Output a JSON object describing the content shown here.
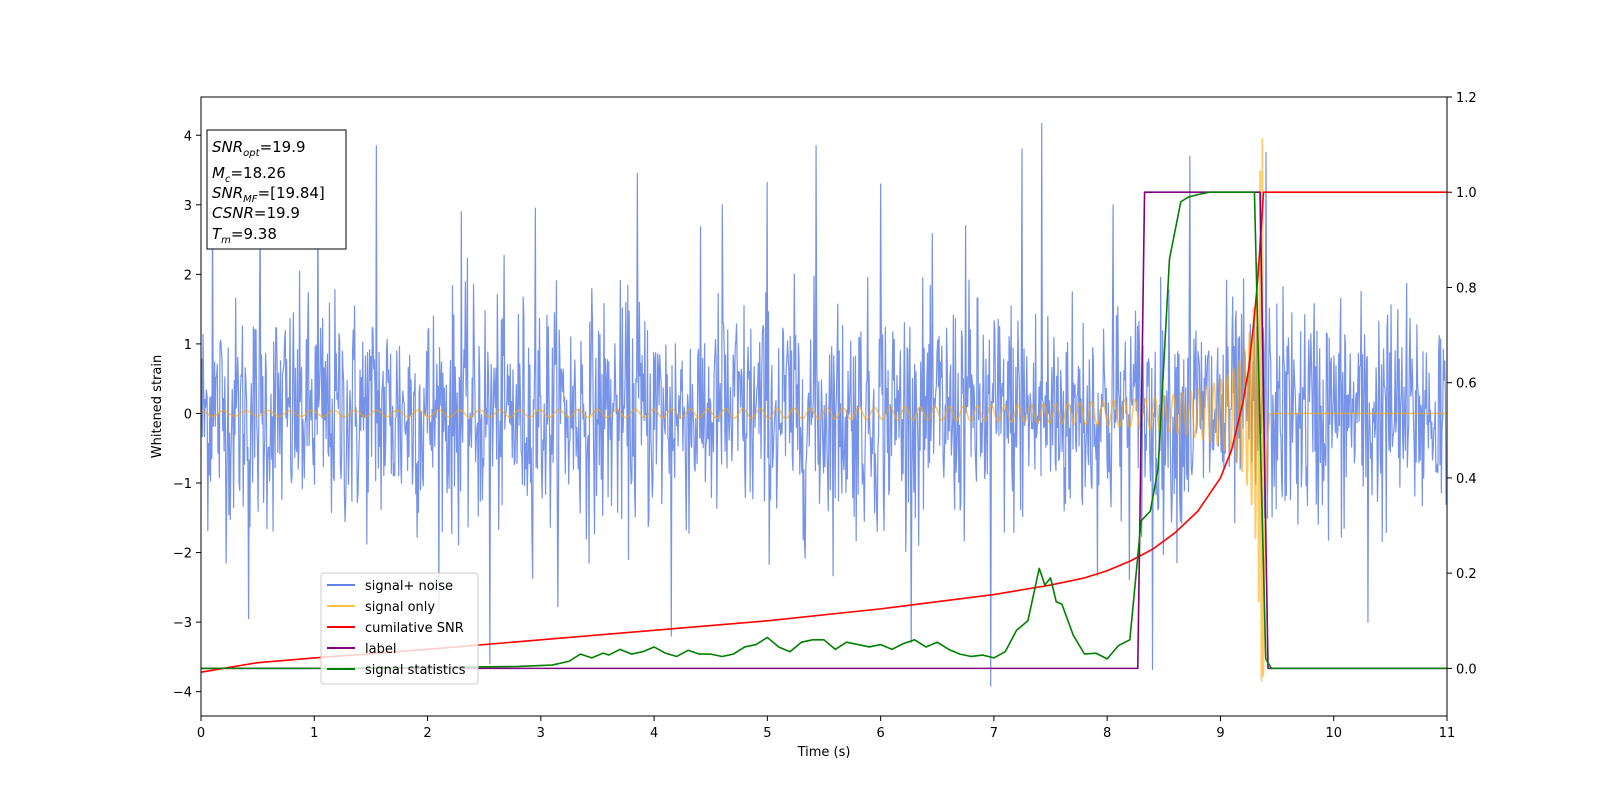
{
  "chart_data": {
    "type": "line",
    "title": "",
    "xlabel": "Time (s)",
    "ylabel": "Whitened strain",
    "xlim": [
      0,
      11
    ],
    "ylim_left": [
      -4.35,
      4.55
    ],
    "ylim_right": [
      -0.1,
      1.2
    ],
    "x_ticks": [
      "0",
      "1",
      "2",
      "3",
      "4",
      "5",
      "6",
      "7",
      "8",
      "9",
      "10",
      "11"
    ],
    "y_ticks_left": [
      "−4",
      "−3",
      "−2",
      "−1",
      "0",
      "1",
      "2",
      "3",
      "4"
    ],
    "y_ticks_right": [
      "0.0",
      "0.2",
      "0.4",
      "0.6",
      "0.8",
      "1.0",
      "1.2"
    ],
    "grid": false,
    "legend_position": "lower-left",
    "info_box": {
      "snr_opt": {
        "main": "SNR",
        "sub": "opt",
        "value": "=19.9"
      },
      "mc": {
        "main": "M",
        "sub": "c",
        "value": "=18.26"
      },
      "snr_mf": {
        "main": "SNR",
        "sub": "MF",
        "value": "=[19.84]"
      },
      "csnr": {
        "main": "CSNR",
        "value": "=19.9"
      },
      "tm": {
        "main": "T",
        "sub": "m",
        "value": "=9.38"
      }
    },
    "series": [
      {
        "name": "signal+ noise",
        "axis": "left",
        "color": "#4169e1",
        "opacity": 0.72,
        "kind": "noise",
        "sigma": 1.05,
        "start": 0,
        "end": 11,
        "dt": 0.006,
        "peaks": [
          [
            0.1,
            3.2
          ],
          [
            0.52,
            2.9
          ],
          [
            1.03,
            3.1
          ],
          [
            1.55,
            3.85
          ],
          [
            2.3,
            2.9
          ],
          [
            2.95,
            2.95
          ],
          [
            3.85,
            3.45
          ],
          [
            4.6,
            3.0
          ],
          [
            5.0,
            3.32
          ],
          [
            5.43,
            3.85
          ],
          [
            6.0,
            3.3
          ],
          [
            6.75,
            2.7
          ],
          [
            7.25,
            3.8
          ],
          [
            7.42,
            4.17
          ],
          [
            8.05,
            3.0
          ],
          [
            8.73,
            3.7
          ],
          [
            9.4,
            3.75
          ],
          [
            0.42,
            -2.95
          ],
          [
            2.55,
            -3.6
          ],
          [
            4.15,
            -3.2
          ],
          [
            6.97,
            -3.92
          ],
          [
            8.4,
            -3.68
          ],
          [
            10.3,
            -3.0
          ]
        ]
      },
      {
        "name": "signal only",
        "axis": "left",
        "color": "#ffa500",
        "opacity": 0.6,
        "kind": "chirp",
        "amplitude_start": 0.04,
        "amplitude_peak": 3.95,
        "frequency_start": 5.0,
        "merger_time": 9.38,
        "ringdown_end": 9.43,
        "end": 11
      },
      {
        "name": "cumilative SNR",
        "axis": "right",
        "color": "#ff0000",
        "x": [
          0,
          0.5,
          1,
          2,
          3,
          4,
          5,
          6,
          6.5,
          7,
          7.5,
          7.8,
          8,
          8.2,
          8.4,
          8.6,
          8.8,
          9,
          9.1,
          9.2,
          9.25,
          9.3,
          9.33,
          9.35,
          9.37,
          9.38,
          11
        ],
        "y": [
          -0.008,
          0.012,
          0.022,
          0.04,
          0.06,
          0.08,
          0.1,
          0.125,
          0.14,
          0.155,
          0.175,
          0.19,
          0.205,
          0.225,
          0.25,
          0.285,
          0.33,
          0.4,
          0.46,
          0.56,
          0.63,
          0.74,
          0.82,
          0.89,
          0.96,
          1.0,
          1.0
        ]
      },
      {
        "name": "label",
        "axis": "right",
        "color": "#800080",
        "x": [
          0,
          8.27,
          8.33,
          9.35,
          9.42,
          11
        ],
        "y": [
          0,
          0,
          1,
          1,
          0,
          0
        ]
      },
      {
        "name": "signal statistics",
        "axis": "right",
        "color": "#008000",
        "x": [
          0,
          1,
          2,
          2.8,
          3.1,
          3.25,
          3.35,
          3.45,
          3.55,
          3.6,
          3.7,
          3.8,
          3.9,
          4.0,
          4.1,
          4.2,
          4.3,
          4.4,
          4.5,
          4.6,
          4.7,
          4.8,
          4.9,
          5.0,
          5.1,
          5.2,
          5.3,
          5.4,
          5.5,
          5.6,
          5.7,
          5.8,
          5.9,
          6.0,
          6.1,
          6.2,
          6.3,
          6.4,
          6.5,
          6.6,
          6.7,
          6.8,
          6.9,
          7.0,
          7.1,
          7.2,
          7.3,
          7.4,
          7.45,
          7.5,
          7.55,
          7.6,
          7.7,
          7.8,
          7.9,
          8.0,
          8.1,
          8.2,
          8.3,
          8.38,
          8.45,
          8.55,
          8.65,
          8.72,
          8.8,
          8.9,
          9.0,
          9.1,
          9.2,
          9.3,
          9.35,
          9.4,
          9.45,
          9.5,
          11
        ],
        "y": [
          0.0,
          0.0,
          0.002,
          0.004,
          0.007,
          0.015,
          0.03,
          0.022,
          0.032,
          0.028,
          0.04,
          0.03,
          0.035,
          0.045,
          0.032,
          0.025,
          0.038,
          0.03,
          0.03,
          0.025,
          0.03,
          0.045,
          0.05,
          0.065,
          0.045,
          0.035,
          0.055,
          0.06,
          0.06,
          0.04,
          0.055,
          0.05,
          0.045,
          0.05,
          0.04,
          0.052,
          0.06,
          0.045,
          0.055,
          0.04,
          0.03,
          0.025,
          0.028,
          0.022,
          0.035,
          0.08,
          0.1,
          0.21,
          0.175,
          0.19,
          0.14,
          0.135,
          0.07,
          0.03,
          0.032,
          0.02,
          0.048,
          0.06,
          0.31,
          0.33,
          0.42,
          0.86,
          0.98,
          0.99,
          0.995,
          1.0,
          1.0,
          1.0,
          1.0,
          1.0,
          0.5,
          0.02,
          0.0,
          0.0,
          0.0
        ]
      }
    ]
  }
}
